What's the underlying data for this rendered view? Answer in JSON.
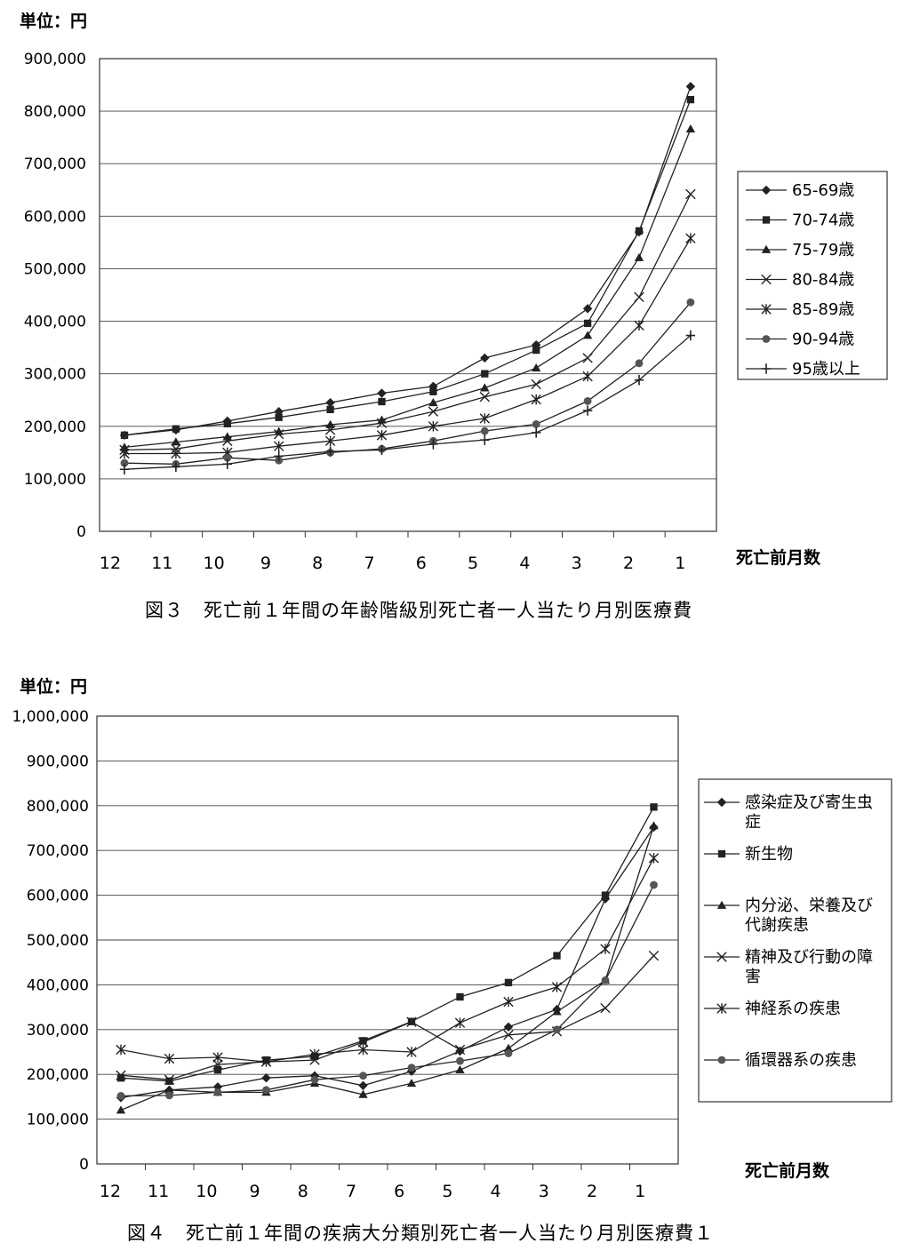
{
  "figures": [
    {
      "caption": "図３　死亡前１年間の年齢階級別死亡者一人当たり月別医療費",
      "unit_label": "単位：円",
      "xlabel": "死亡前月数"
    },
    {
      "caption": "図４　死亡前１年間の疾病大分類別死亡者一人当たり月別医療費１",
      "unit_label": "単位：円",
      "xlabel": "死亡前月数"
    }
  ],
  "chart_data": [
    {
      "type": "line",
      "title": "",
      "xlabel": "死亡前月数",
      "ylabel": "単位：円",
      "categories": [
        "12",
        "11",
        "10",
        "9",
        "8",
        "7",
        "6",
        "5",
        "4",
        "3",
        "2",
        "1"
      ],
      "ylim": [
        0,
        900000
      ],
      "yticks": [
        0,
        100000,
        200000,
        300000,
        400000,
        500000,
        600000,
        700000,
        800000,
        900000
      ],
      "ytick_labels": [
        "0",
        "100,000",
        "200,000",
        "300,000",
        "400,000",
        "500,000",
        "600,000",
        "700,000",
        "800,000",
        "900,000"
      ],
      "grid": true,
      "legend_position": "right",
      "series": [
        {
          "name": "65-69歳",
          "marker": "diamond",
          "values": [
            183000,
            193000,
            210000,
            228000,
            245000,
            263000,
            276000,
            330000,
            355000,
            424000,
            570000,
            847000
          ]
        },
        {
          "name": "70-74歳",
          "marker": "square",
          "values": [
            183000,
            195000,
            205000,
            217000,
            232000,
            247000,
            266000,
            300000,
            345000,
            396000,
            572000,
            822000
          ]
        },
        {
          "name": "75-79歳",
          "marker": "triangle",
          "values": [
            160000,
            170000,
            180000,
            190000,
            203000,
            212000,
            245000,
            273000,
            311000,
            373000,
            521000,
            766000
          ]
        },
        {
          "name": "80-84歳",
          "marker": "x",
          "values": [
            155000,
            157000,
            172000,
            185000,
            193000,
            206000,
            228000,
            256000,
            280000,
            330000,
            446000,
            642000
          ]
        },
        {
          "name": "85-89歳",
          "marker": "asterisk",
          "values": [
            148000,
            148000,
            150000,
            162000,
            172000,
            183000,
            200000,
            215000,
            251000,
            295000,
            392000,
            558000
          ]
        },
        {
          "name": "90-94歳",
          "marker": "circle",
          "values": [
            130000,
            128000,
            140000,
            135000,
            150000,
            157000,
            172000,
            191000,
            204000,
            248000,
            320000,
            436000
          ]
        },
        {
          "name": "95歳以上",
          "marker": "plus",
          "values": [
            118000,
            123000,
            128000,
            143000,
            152000,
            155000,
            166000,
            174000,
            188000,
            230000,
            288000,
            373000
          ]
        }
      ]
    },
    {
      "type": "line",
      "title": "",
      "xlabel": "死亡前月数",
      "ylabel": "単位：円",
      "categories": [
        "12",
        "11",
        "10",
        "9",
        "8",
        "7",
        "6",
        "5",
        "4",
        "3",
        "2",
        "1"
      ],
      "ylim": [
        0,
        1000000
      ],
      "yticks": [
        0,
        100000,
        200000,
        300000,
        400000,
        500000,
        600000,
        700000,
        800000,
        900000,
        1000000
      ],
      "ytick_labels": [
        "0",
        "100,000",
        "200,000",
        "300,000",
        "400,000",
        "500,000",
        "600,000",
        "700,000",
        "800,000",
        "900,000",
        "1,000,000"
      ],
      "grid": true,
      "legend_position": "right",
      "series": [
        {
          "name": "感染症及び寄生虫症",
          "legend_lines": [
            "感染症及び寄生虫",
            "症"
          ],
          "marker": "diamond",
          "values": [
            148000,
            165000,
            172000,
            192000,
            197000,
            175000,
            207000,
            252000,
            306000,
            345000,
            592000,
            752000
          ]
        },
        {
          "name": "新生物",
          "legend_lines": [
            "新生物"
          ],
          "marker": "square",
          "values": [
            192000,
            185000,
            210000,
            232000,
            240000,
            275000,
            318000,
            373000,
            405000,
            465000,
            600000,
            797000
          ]
        },
        {
          "name": "内分泌、栄養及び代謝疾患",
          "legend_lines": [
            "内分泌、栄養及び",
            "代謝疾患"
          ],
          "marker": "triangle",
          "values": [
            120000,
            165000,
            160000,
            160000,
            180000,
            155000,
            180000,
            210000,
            258000,
            340000,
            410000,
            755000
          ]
        },
        {
          "name": "精神及び行動の障害",
          "legend_lines": [
            "精神及び行動の障",
            "害"
          ],
          "marker": "x",
          "values": [
            198000,
            188000,
            222000,
            228000,
            232000,
            272000,
            317000,
            255000,
            288000,
            296000,
            348000,
            465000
          ]
        },
        {
          "name": "神経系の疾患",
          "legend_lines": [
            "神経系の疾患"
          ],
          "marker": "asterisk",
          "values": [
            255000,
            235000,
            238000,
            228000,
            245000,
            255000,
            250000,
            315000,
            362000,
            395000,
            480000,
            683000
          ]
        },
        {
          "name": "循環器系の疾患",
          "legend_lines": [
            "循環器系の疾患"
          ],
          "marker": "circle",
          "values": [
            152000,
            153000,
            160000,
            165000,
            188000,
            197000,
            215000,
            230000,
            247000,
            300000,
            410000,
            623000
          ]
        }
      ]
    }
  ]
}
